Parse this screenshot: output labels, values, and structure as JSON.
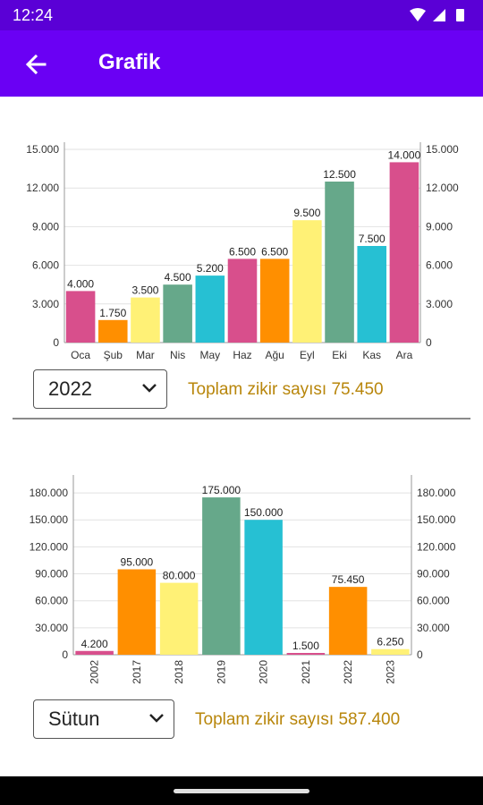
{
  "status": {
    "time": "12:24"
  },
  "appbar": {
    "title": "Grafik",
    "back_icon": "arrow-left-icon"
  },
  "chart_data": [
    {
      "type": "bar",
      "categories": [
        "Oca",
        "Şub",
        "Mar",
        "Nis",
        "May",
        "Haz",
        "Ağu",
        "Eyl",
        "Eki",
        "Kas",
        "Ara"
      ],
      "values": [
        4000,
        1750,
        3500,
        4500,
        5200,
        6500,
        6500,
        9500,
        12500,
        7500,
        14000
      ],
      "value_labels": [
        "4.000",
        "1.750",
        "3.500",
        "4.500",
        "5.200",
        "6.500",
        "6.500",
        "9.500",
        "12.500",
        "7.500",
        "14.000"
      ],
      "colors": [
        "#d84f8c",
        "#ff8f00",
        "#fff176",
        "#66a88a",
        "#26c0d3",
        "#d84f8c",
        "#ff8f00",
        "#fff176",
        "#66a88a",
        "#26c0d3",
        "#d84f8c"
      ],
      "yticks": [
        0,
        3000,
        6000,
        9000,
        12000,
        15000
      ],
      "ytick_labels": [
        "0",
        "3.000",
        "6.000",
        "9.000",
        "12.000",
        "15.000"
      ],
      "ylim": [
        0,
        15000
      ],
      "dual_y_axis": true,
      "grid": true
    },
    {
      "type": "bar",
      "categories": [
        "2002",
        "2017",
        "2018",
        "2019",
        "2020",
        "2021",
        "2022",
        "2023"
      ],
      "values": [
        4200,
        95000,
        80000,
        175000,
        150000,
        1500,
        75450,
        6250
      ],
      "value_labels": [
        "4.200",
        "95.000",
        "80.000",
        "175.000",
        "150.000",
        "1.500",
        "75.450",
        "6.250"
      ],
      "colors": [
        "#d84f8c",
        "#ff8f00",
        "#fff176",
        "#66a88a",
        "#26c0d3",
        "#d84f8c",
        "#ff8f00",
        "#fff176"
      ],
      "yticks": [
        0,
        30000,
        60000,
        90000,
        120000,
        150000,
        180000
      ],
      "ytick_labels": [
        "0",
        "30.000",
        "60.000",
        "90.000",
        "120.000",
        "150.000",
        "180.000"
      ],
      "ylim": [
        0,
        192000
      ],
      "dual_y_axis": true,
      "grid": true,
      "rotated_x_labels": true
    }
  ],
  "controls1": {
    "year_select": "2022",
    "total_text": "Toplam zikir sayısı 75.450"
  },
  "controls2": {
    "type_select": "Sütun",
    "total_text": "Toplam zikir sayısı 587.400"
  }
}
